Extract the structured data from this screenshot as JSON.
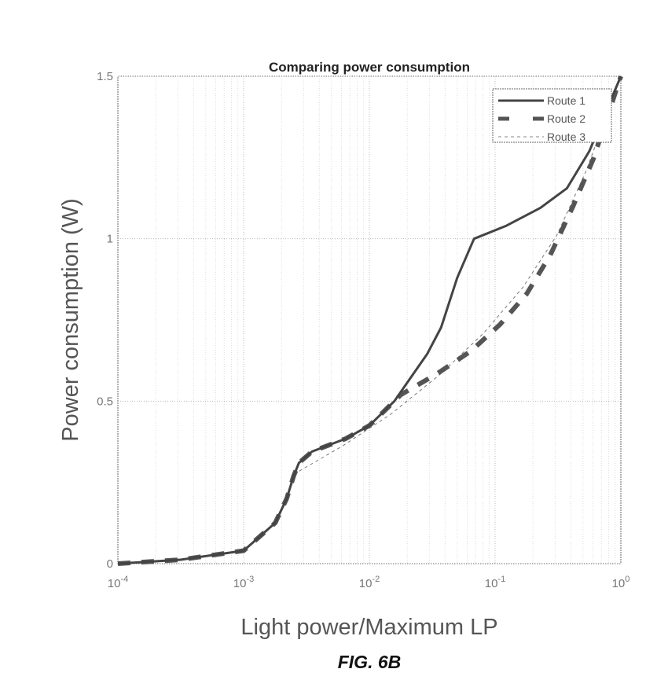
{
  "caption": "FIG. 6B",
  "chart_data": {
    "type": "line",
    "title": "Comparing power consumption",
    "xlabel": "Light power/Maximum LP",
    "ylabel": "Power consumption (W)",
    "xscale": "log",
    "xlim": [
      0.0001,
      1
    ],
    "ylim": [
      0,
      1.5
    ],
    "grid": true,
    "legend_position": "top-right",
    "x_ticks": [
      {
        "value": 0.0001,
        "base": "10",
        "exp": "-4"
      },
      {
        "value": 0.001,
        "base": "10",
        "exp": "-3"
      },
      {
        "value": 0.01,
        "base": "10",
        "exp": "-2"
      },
      {
        "value": 0.1,
        "base": "10",
        "exp": "-1"
      },
      {
        "value": 1,
        "base": "10",
        "exp": "0"
      }
    ],
    "y_ticks": [
      {
        "value": 0,
        "label": "0"
      },
      {
        "value": 0.5,
        "label": "0.5"
      },
      {
        "value": 1,
        "label": "1"
      },
      {
        "value": 1.5,
        "label": "1.5"
      }
    ],
    "series": [
      {
        "name": "Route 1",
        "style": "solid",
        "color": "#444444",
        "points": [
          [
            0.0001,
            0
          ],
          [
            0.000316,
            0.012
          ],
          [
            0.001,
            0.04
          ],
          [
            0.00178,
            0.125
          ],
          [
            0.0022,
            0.2
          ],
          [
            0.0025,
            0.27
          ],
          [
            0.00275,
            0.31
          ],
          [
            0.0035,
            0.345
          ],
          [
            0.0065,
            0.385
          ],
          [
            0.01,
            0.425
          ],
          [
            0.0158,
            0.5
          ],
          [
            0.0288,
            0.645
          ],
          [
            0.0372,
            0.727
          ],
          [
            0.05,
            0.88
          ],
          [
            0.068,
            1.0
          ],
          [
            0.123,
            1.04
          ],
          [
            0.229,
            1.095
          ],
          [
            0.372,
            1.155
          ],
          [
            0.562,
            1.27
          ],
          [
            1,
            1.5
          ]
        ]
      },
      {
        "name": "Route 2",
        "style": "dashed-thick",
        "color": "#555555",
        "points": [
          [
            0.0001,
            0
          ],
          [
            0.000316,
            0.012
          ],
          [
            0.001,
            0.04
          ],
          [
            0.00178,
            0.125
          ],
          [
            0.0022,
            0.2
          ],
          [
            0.0025,
            0.27
          ],
          [
            0.00275,
            0.31
          ],
          [
            0.0035,
            0.345
          ],
          [
            0.0065,
            0.385
          ],
          [
            0.01,
            0.425
          ],
          [
            0.0158,
            0.5
          ],
          [
            0.0178,
            0.52
          ],
          [
            0.0347,
            0.585
          ],
          [
            0.0646,
            0.655
          ],
          [
            0.11,
            0.737
          ],
          [
            0.178,
            0.83
          ],
          [
            0.275,
            0.95
          ],
          [
            0.417,
            1.1
          ],
          [
            0.603,
            1.245
          ],
          [
            1,
            1.5
          ]
        ]
      },
      {
        "name": "Route 3",
        "style": "dashed-thin",
        "color": "#777777",
        "points": [
          [
            0.0001,
            0
          ],
          [
            0.000316,
            0.012
          ],
          [
            0.001,
            0.04
          ],
          [
            0.00178,
            0.125
          ],
          [
            0.0022,
            0.2
          ],
          [
            0.0025,
            0.26
          ],
          [
            0.00263,
            0.28
          ],
          [
            0.006,
            0.36
          ],
          [
            0.0148,
            0.46
          ],
          [
            0.0372,
            0.585
          ],
          [
            0.0813,
            0.71
          ],
          [
            0.166,
            0.85
          ],
          [
            0.309,
            1.01
          ],
          [
            0.525,
            1.205
          ],
          [
            1,
            1.5
          ]
        ]
      }
    ]
  }
}
